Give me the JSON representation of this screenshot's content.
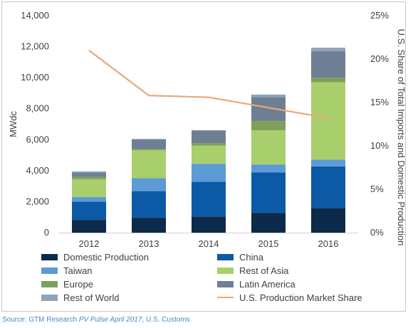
{
  "chart_data": {
    "type": "bar",
    "stacked": true,
    "categories": [
      "2012",
      "2013",
      "2014",
      "2015",
      "2016"
    ],
    "series": [
      {
        "name": "Domestic Production",
        "color": "#0e2a4a",
        "values": [
          820,
          960,
          1040,
          1280,
          1580
        ]
      },
      {
        "name": "China",
        "color": "#0c5aa6",
        "values": [
          1180,
          1720,
          2240,
          2600,
          2700
        ]
      },
      {
        "name": "Taiwan",
        "color": "#5c9bd6",
        "values": [
          300,
          830,
          1160,
          520,
          430
        ]
      },
      {
        "name": "Rest of Asia",
        "color": "#a8cf6b",
        "values": [
          1150,
          1820,
          1180,
          2200,
          5000
        ]
      },
      {
        "name": "Europe",
        "color": "#7f9f5a",
        "values": [
          140,
          60,
          160,
          600,
          280
        ]
      },
      {
        "name": "Latin America",
        "color": "#6e7f94",
        "values": [
          300,
          620,
          800,
          1550,
          1720
        ]
      },
      {
        "name": "Rest of World",
        "color": "#8fa4b8",
        "values": [
          60,
          40,
          40,
          160,
          220
        ]
      }
    ],
    "line_series": {
      "name": "U.S. Production Market Share",
      "color": "#e8a87c",
      "axis": "right",
      "values": [
        21.0,
        15.8,
        15.6,
        14.4,
        13.2
      ]
    },
    "ylabel": "MWdc",
    "ylim": [
      0,
      14000
    ],
    "yticks": [
      "0",
      "2,000",
      "4,000",
      "6,000",
      "8,000",
      "10,000",
      "12,000",
      "14,000"
    ],
    "y2label": "U.S. Share of Total Imports and Domestic Production",
    "y2lim": [
      0,
      25
    ],
    "y2ticks": [
      "0%",
      "5%",
      "10%",
      "15%",
      "20%",
      "25%"
    ],
    "grid": false,
    "legend_position": "bottom"
  },
  "source": {
    "prefix": "Source: GTM Research ",
    "italic": "PV Pulse April 2017",
    "suffix": ", U.S. Customs"
  }
}
